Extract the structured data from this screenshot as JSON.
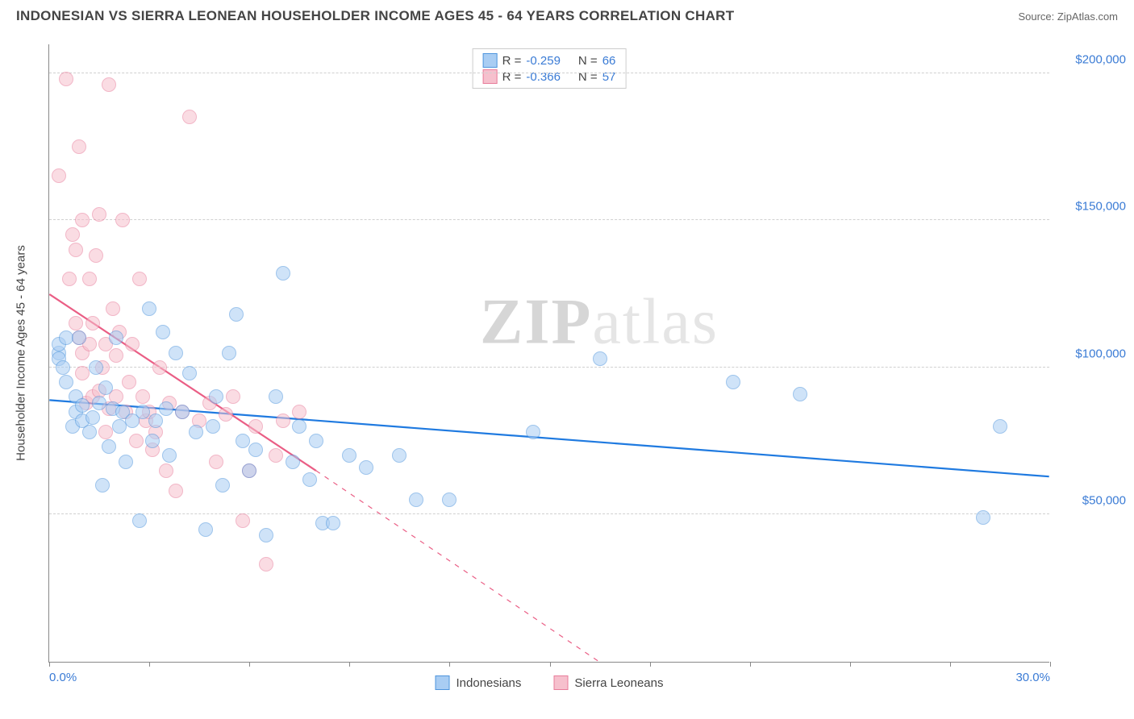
{
  "title": "INDONESIAN VS SIERRA LEONEAN HOUSEHOLDER INCOME AGES 45 - 64 YEARS CORRELATION CHART",
  "source": "Source: ZipAtlas.com",
  "yaxis_title": "Householder Income Ages 45 - 64 years",
  "watermark_a": "ZIP",
  "watermark_b": "atlas",
  "chart": {
    "type": "scatter",
    "xlim": [
      0,
      30
    ],
    "ylim": [
      0,
      210000
    ],
    "x_tick_marks": [
      0,
      3,
      6,
      9,
      12,
      15,
      18,
      21,
      24,
      27,
      30
    ],
    "x_labels": [
      {
        "v": 0,
        "t": "0.0%"
      },
      {
        "v": 30,
        "t": "30.0%"
      }
    ],
    "y_gridlines": [
      50000,
      100000,
      150000,
      200000
    ],
    "y_labels": [
      {
        "v": 50000,
        "t": "$50,000"
      },
      {
        "v": 100000,
        "t": "$100,000"
      },
      {
        "v": 150000,
        "t": "$150,000"
      },
      {
        "v": 200000,
        "t": "$200,000"
      }
    ],
    "grid_color": "#d0d0d0",
    "axis_color": "#888888",
    "tick_label_color": "#3a7bd5",
    "point_radius": 9,
    "point_opacity": 0.55,
    "line_width_solid": 2.2,
    "line_width_dash": 1.2,
    "series": [
      {
        "name": "Indonesians",
        "fill": "#a9cdf3",
        "stroke": "#4e95dd",
        "line_color": "#1f7ae0",
        "R": "-0.259",
        "N": "66",
        "trend_line": {
          "x1": 0,
          "y1": 89000,
          "x2": 30,
          "y2": 63000
        },
        "points": [
          [
            0.3,
            105000
          ],
          [
            0.3,
            108000
          ],
          [
            0.3,
            103000
          ],
          [
            0.4,
            100000
          ],
          [
            0.5,
            95000
          ],
          [
            0.5,
            110000
          ],
          [
            0.7,
            80000
          ],
          [
            0.8,
            90000
          ],
          [
            0.8,
            85000
          ],
          [
            0.9,
            110000
          ],
          [
            1.0,
            87000
          ],
          [
            1.0,
            82000
          ],
          [
            1.2,
            78000
          ],
          [
            1.3,
            83000
          ],
          [
            1.4,
            100000
          ],
          [
            1.5,
            88000
          ],
          [
            1.6,
            60000
          ],
          [
            1.7,
            93000
          ],
          [
            1.8,
            73000
          ],
          [
            1.9,
            86000
          ],
          [
            2.0,
            110000
          ],
          [
            2.1,
            80000
          ],
          [
            2.2,
            85000
          ],
          [
            2.3,
            68000
          ],
          [
            2.5,
            82000
          ],
          [
            2.7,
            48000
          ],
          [
            2.8,
            85000
          ],
          [
            3.0,
            120000
          ],
          [
            3.1,
            75000
          ],
          [
            3.2,
            82000
          ],
          [
            3.4,
            112000
          ],
          [
            3.5,
            86000
          ],
          [
            3.6,
            70000
          ],
          [
            3.8,
            105000
          ],
          [
            4.0,
            85000
          ],
          [
            4.2,
            98000
          ],
          [
            4.4,
            78000
          ],
          [
            4.7,
            45000
          ],
          [
            4.9,
            80000
          ],
          [
            5.0,
            90000
          ],
          [
            5.2,
            60000
          ],
          [
            5.4,
            105000
          ],
          [
            5.6,
            118000
          ],
          [
            5.8,
            75000
          ],
          [
            6.0,
            65000
          ],
          [
            6.2,
            72000
          ],
          [
            6.5,
            43000
          ],
          [
            6.8,
            90000
          ],
          [
            7.0,
            132000
          ],
          [
            7.3,
            68000
          ],
          [
            7.5,
            80000
          ],
          [
            7.8,
            62000
          ],
          [
            8.0,
            75000
          ],
          [
            8.2,
            47000
          ],
          [
            8.5,
            47000
          ],
          [
            9.0,
            70000
          ],
          [
            9.5,
            66000
          ],
          [
            10.5,
            70000
          ],
          [
            11.0,
            55000
          ],
          [
            12.0,
            55000
          ],
          [
            14.5,
            78000
          ],
          [
            16.5,
            103000
          ],
          [
            20.5,
            95000
          ],
          [
            22.5,
            91000
          ],
          [
            28.0,
            49000
          ],
          [
            28.5,
            80000
          ]
        ]
      },
      {
        "name": "Sierra Leoneans",
        "fill": "#f6c0cd",
        "stroke": "#e87c9a",
        "line_color": "#ea5e85",
        "R": "-0.366",
        "N": "57",
        "trend_line": {
          "x1": 0,
          "y1": 125000,
          "x2": 8,
          "y2": 65000
        },
        "trend_dash": {
          "x1": 8,
          "y1": 65000,
          "x2": 16.5,
          "y2": 0
        },
        "points": [
          [
            0.3,
            165000
          ],
          [
            0.5,
            198000
          ],
          [
            0.6,
            130000
          ],
          [
            0.7,
            145000
          ],
          [
            0.8,
            115000
          ],
          [
            0.8,
            140000
          ],
          [
            0.9,
            110000
          ],
          [
            0.9,
            175000
          ],
          [
            1.0,
            98000
          ],
          [
            1.0,
            105000
          ],
          [
            1.0,
            150000
          ],
          [
            1.1,
            88000
          ],
          [
            1.2,
            130000
          ],
          [
            1.2,
            108000
          ],
          [
            1.3,
            115000
          ],
          [
            1.3,
            90000
          ],
          [
            1.4,
            138000
          ],
          [
            1.5,
            92000
          ],
          [
            1.5,
            152000
          ],
          [
            1.6,
            100000
          ],
          [
            1.7,
            78000
          ],
          [
            1.7,
            108000
          ],
          [
            1.8,
            86000
          ],
          [
            1.8,
            196000
          ],
          [
            1.9,
            120000
          ],
          [
            2.0,
            104000
          ],
          [
            2.0,
            90000
          ],
          [
            2.1,
            112000
          ],
          [
            2.2,
            150000
          ],
          [
            2.3,
            85000
          ],
          [
            2.4,
            95000
          ],
          [
            2.5,
            108000
          ],
          [
            2.6,
            75000
          ],
          [
            2.7,
            130000
          ],
          [
            2.8,
            90000
          ],
          [
            2.9,
            82000
          ],
          [
            3.0,
            85000
          ],
          [
            3.1,
            72000
          ],
          [
            3.2,
            78000
          ],
          [
            3.3,
            100000
          ],
          [
            3.5,
            65000
          ],
          [
            3.6,
            88000
          ],
          [
            3.8,
            58000
          ],
          [
            4.0,
            85000
          ],
          [
            4.2,
            185000
          ],
          [
            4.5,
            82000
          ],
          [
            4.8,
            88000
          ],
          [
            5.0,
            68000
          ],
          [
            5.3,
            84000
          ],
          [
            5.5,
            90000
          ],
          [
            5.8,
            48000
          ],
          [
            6.0,
            65000
          ],
          [
            6.2,
            80000
          ],
          [
            6.5,
            33000
          ],
          [
            6.8,
            70000
          ],
          [
            7.0,
            82000
          ],
          [
            7.5,
            85000
          ]
        ]
      }
    ]
  }
}
